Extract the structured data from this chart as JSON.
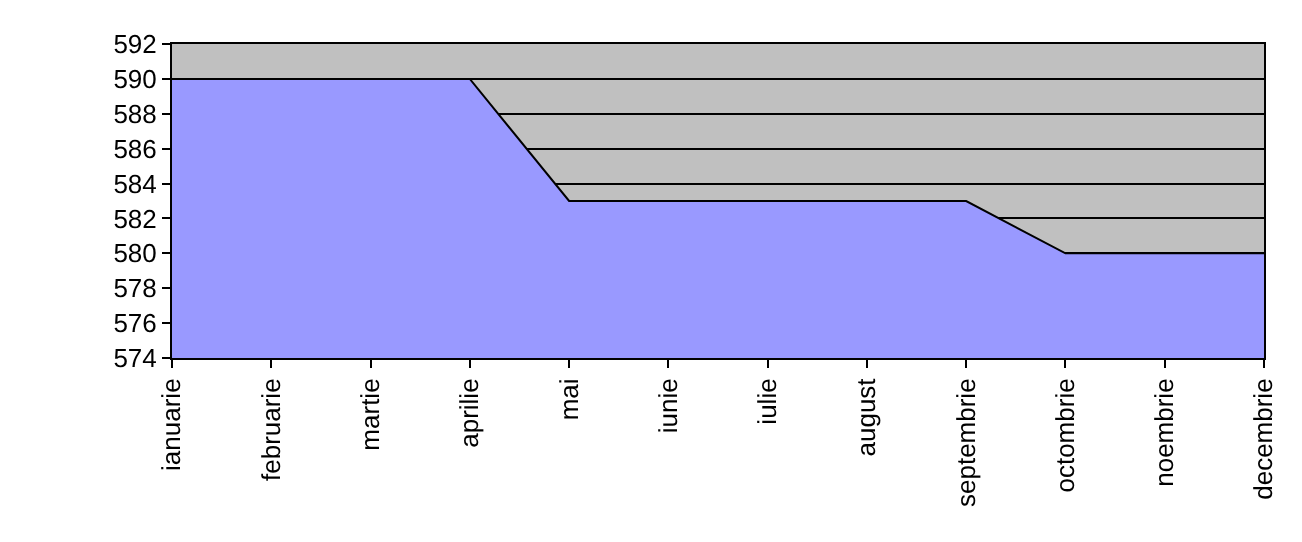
{
  "chart_data": {
    "type": "area",
    "categories": [
      "ianuarie",
      "februarie",
      "martie",
      "aprilie",
      "mai",
      "iunie",
      "iulie",
      "august",
      "septembrie",
      "octombrie",
      "noembrie",
      "decembrie"
    ],
    "series": [
      {
        "color": "#9999ff",
        "values": [
          590,
          590,
          590,
          590,
          583,
          583,
          583,
          583,
          583,
          580,
          580,
          580
        ]
      }
    ],
    "ylim": [
      574,
      592
    ],
    "yticks": [
      574,
      576,
      578,
      580,
      582,
      584,
      586,
      588,
      590,
      592
    ],
    "grid": "y",
    "legend": false
  }
}
